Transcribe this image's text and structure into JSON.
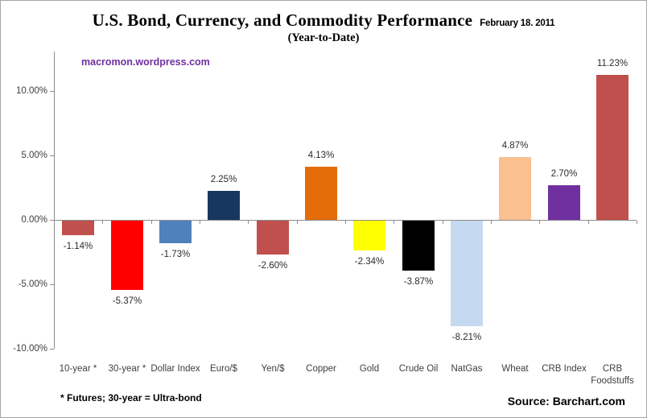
{
  "header": {
    "title": "U.S. Bond, Currency, and Commodity Performance",
    "date": "February 18. 2011",
    "subtitle": "(Year-to-Date)"
  },
  "watermark": "macromon.wordpress.com",
  "footnote": "* Futures; 30-year = Ultra-bond",
  "source": "Source: Barchart.com",
  "colors": {
    "watermark": "#7030A0",
    "axis": "#8C8C8C",
    "background": "#FFFFFF"
  },
  "chart_data": {
    "type": "bar",
    "title": "U.S. Bond, Currency, and Commodity Performance",
    "subtitle": "(Year-to-Date)",
    "categories": [
      "10-year *",
      "30-year *",
      "Dollar Index",
      "Euro/$",
      "Yen/$",
      "Copper",
      "Gold",
      "Crude Oil",
      "NatGas",
      "Wheat",
      "CRB Index",
      "CRB Foodstuffs"
    ],
    "values": [
      -1.14,
      -5.37,
      -1.73,
      2.25,
      -2.6,
      4.13,
      -2.34,
      -3.87,
      -8.21,
      4.87,
      2.7,
      11.23
    ],
    "value_labels": [
      "-1.14%",
      "-5.37%",
      "-1.73%",
      "2.25%",
      "-2.60%",
      "4.13%",
      "-2.34%",
      "-3.87%",
      "-8.21%",
      "4.87%",
      "2.70%",
      "11.23%"
    ],
    "bar_colors": [
      "#C0504D",
      "#FF0000",
      "#4F81BD",
      "#17375E",
      "#C0504D",
      "#E36C09",
      "#FFFF00",
      "#000000",
      "#C5D9F1",
      "#FAC090",
      "#7030A0",
      "#C0504D"
    ],
    "y_ticks": [
      "10.00%",
      "5.00%",
      "0.00%",
      "-5.00%",
      "-10.00%"
    ],
    "y_tick_values": [
      10,
      5,
      0,
      -5,
      -10
    ],
    "ylim": [
      -10,
      13
    ],
    "xlabel": "",
    "ylabel": "",
    "grid": false,
    "legend": false
  }
}
